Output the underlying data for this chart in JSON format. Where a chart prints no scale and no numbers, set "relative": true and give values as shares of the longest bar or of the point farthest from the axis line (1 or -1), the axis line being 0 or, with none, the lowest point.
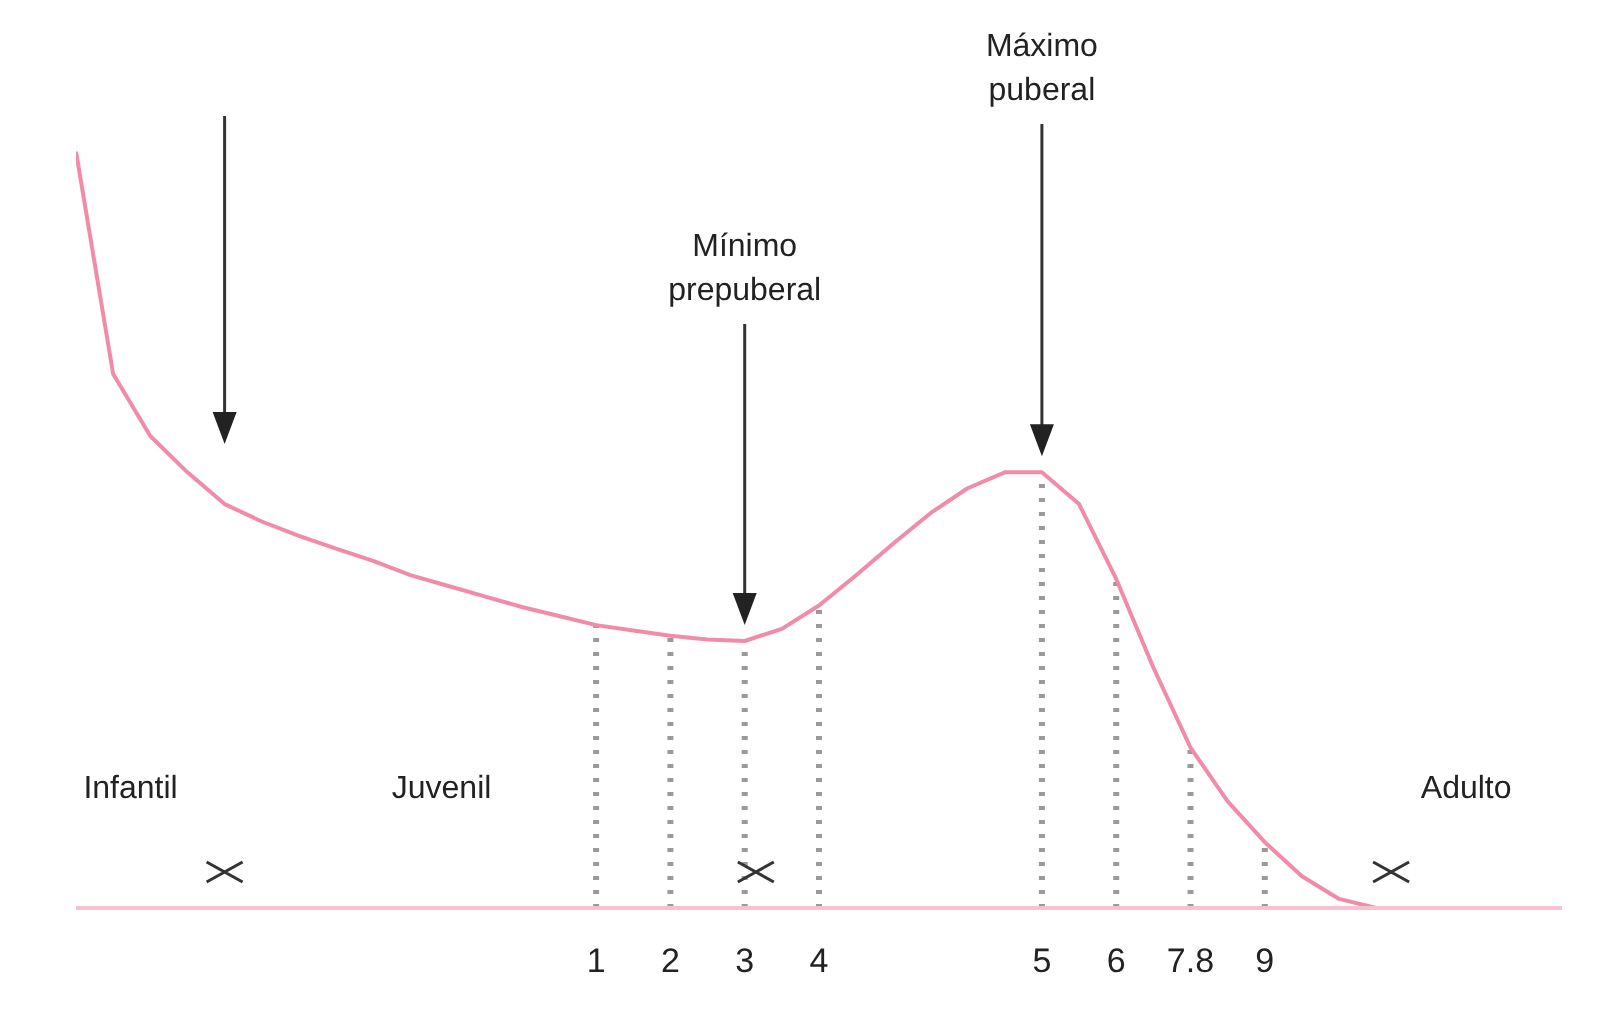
{
  "chart_data": {
    "type": "line",
    "relative": true,
    "categories": [
      null,
      null,
      null,
      null,
      null,
      null,
      null,
      null,
      null,
      null,
      null,
      null,
      null,
      null,
      "1",
      null,
      "2",
      null,
      "3",
      null,
      "4",
      null,
      null,
      null,
      null,
      null,
      "5",
      null,
      "6",
      null,
      "7.8",
      null,
      "9",
      null,
      null,
      null,
      null,
      null,
      null,
      null,
      null
    ],
    "series": [
      {
        "color": "#f08ca8",
        "values": [
          1.0,
          0.706,
          0.624,
          0.576,
          0.534,
          0.511,
          0.492,
          0.475,
          0.459,
          0.44,
          0.426,
          0.412,
          0.398,
          0.386,
          0.374,
          0.367,
          0.36,
          0.355,
          0.353,
          0.369,
          0.4,
          0.44,
          0.482,
          0.522,
          0.555,
          0.576,
          0.576,
          0.534,
          0.435,
          0.318,
          0.212,
          0.141,
          0.087,
          0.042,
          0.012,
          0,
          0,
          0,
          0,
          0,
          0
        ]
      }
    ],
    "ref_lines": [
      {
        "axis": "x",
        "value": "1",
        "line_style": "dotted",
        "color": "#9a9a9a"
      },
      {
        "axis": "x",
        "value": "2",
        "line_style": "dotted",
        "color": "#9a9a9a"
      },
      {
        "axis": "x",
        "value": "3",
        "line_style": "dotted",
        "color": "#9a9a9a"
      },
      {
        "axis": "x",
        "value": "4",
        "line_style": "dotted",
        "color": "#9a9a9a"
      },
      {
        "axis": "x",
        "value": "5",
        "line_style": "dotted",
        "color": "#9a9a9a"
      },
      {
        "axis": "x",
        "value": "6",
        "line_style": "dotted",
        "color": "#9a9a9a"
      },
      {
        "axis": "x",
        "value": "7.8",
        "line_style": "dotted",
        "color": "#9a9a9a"
      },
      {
        "axis": "x",
        "value": "9",
        "line_style": "dotted",
        "color": "#9a9a9a"
      }
    ],
    "annotations": [
      "Máximo puberal",
      "Mínimo prepuberal",
      "Infantil",
      "Juvenil",
      "Adulto"
    ]
  }
}
